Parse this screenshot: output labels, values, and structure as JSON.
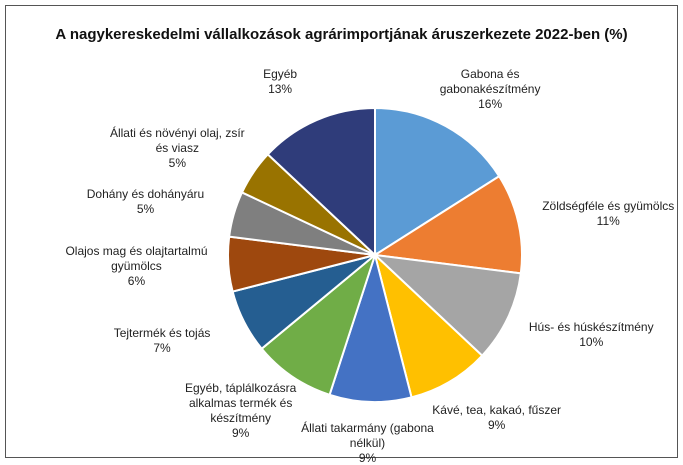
{
  "chart_data": {
    "type": "pie",
    "title": "A nagykereskedelmi vállalkozások agrárimportjának áruszerkezete 2022-ben (%)",
    "categories": [
      "Gabona és gabonakészítmény",
      "Zöldségféle és gyümölcs",
      "Hús- és húskészítmény",
      "Kávé, tea, kakaó, fűszer",
      "Állati takarmány (gabona nélkül)",
      "Egyéb, táplálkozásra alkalmas termék és készítmény",
      "Tejtermék és tojás",
      "Olajos mag és olajtartalmú gyümölcs",
      "Dohány és dohányáru",
      "Állati és növényi olaj, zsír és viasz",
      "Egyéb"
    ],
    "values": [
      16,
      11,
      10,
      9,
      9,
      9,
      7,
      6,
      5,
      5,
      13
    ],
    "value_labels": [
      "16%",
      "11%",
      "10%",
      "9%",
      "9%",
      "9%",
      "7%",
      "6%",
      "5%",
      "5%",
      "13%"
    ],
    "colors": [
      "#5b9bd5",
      "#ed7d31",
      "#a5a5a5",
      "#ffc000",
      "#4472c4",
      "#70ad47",
      "#255e91",
      "#9e480e",
      "#7f7f7f",
      "#997300",
      "#2f3c7a"
    ]
  }
}
